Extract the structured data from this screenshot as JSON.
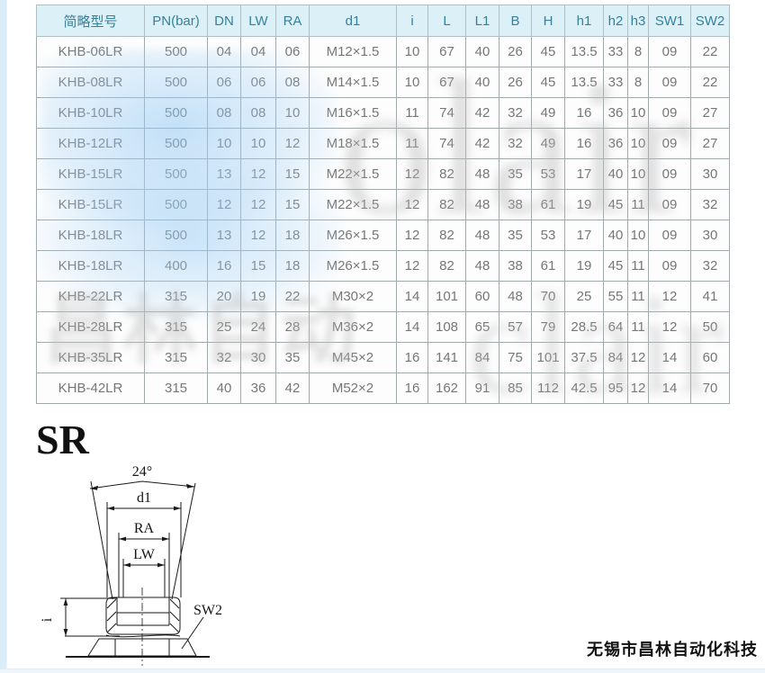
{
  "table": {
    "columns": [
      "简略型号",
      "PN(bar)",
      "DN",
      "LW",
      "RA",
      "d1",
      "i",
      "L",
      "L1",
      "B",
      "H",
      "h1",
      "h2",
      "h3",
      "SW1",
      "SW2"
    ],
    "rows": [
      [
        "KHB-06LR",
        "500",
        "04",
        "04",
        "06",
        "M12×1.5",
        "10",
        "67",
        "40",
        "26",
        "45",
        "13.5",
        "33",
        "8",
        "09",
        "22"
      ],
      [
        "KHB-08LR",
        "500",
        "06",
        "06",
        "08",
        "M14×1.5",
        "10",
        "67",
        "40",
        "26",
        "45",
        "13.5",
        "33",
        "8",
        "09",
        "22"
      ],
      [
        "KHB-10LR",
        "500",
        "08",
        "08",
        "10",
        "M16×1.5",
        "11",
        "74",
        "42",
        "32",
        "49",
        "16",
        "36",
        "10",
        "09",
        "27"
      ],
      [
        "KHB-12LR",
        "500",
        "10",
        "10",
        "12",
        "M18×1.5",
        "11",
        "74",
        "42",
        "32",
        "49",
        "16",
        "36",
        "10",
        "09",
        "27"
      ],
      [
        "KHB-15LR",
        "500",
        "13",
        "12",
        "15",
        "M22×1.5",
        "12",
        "82",
        "48",
        "35",
        "53",
        "17",
        "40",
        "10",
        "09",
        "30"
      ],
      [
        "KHB-15LR",
        "500",
        "12",
        "12",
        "15",
        "M22×1.5",
        "12",
        "82",
        "48",
        "38",
        "61",
        "19",
        "45",
        "11",
        "09",
        "32"
      ],
      [
        "KHB-18LR",
        "500",
        "13",
        "12",
        "18",
        "M26×1.5",
        "12",
        "82",
        "48",
        "35",
        "53",
        "17",
        "40",
        "10",
        "09",
        "30"
      ],
      [
        "KHB-18LR",
        "400",
        "16",
        "15",
        "18",
        "M26×1.5",
        "12",
        "82",
        "48",
        "38",
        "61",
        "19",
        "45",
        "11",
        "09",
        "32"
      ],
      [
        "KHB-22LR",
        "315",
        "20",
        "19",
        "22",
        "M30×2",
        "14",
        "101",
        "60",
        "48",
        "70",
        "25",
        "55",
        "11",
        "12",
        "41"
      ],
      [
        "KHB-28LR",
        "315",
        "25",
        "24",
        "28",
        "M36×2",
        "14",
        "108",
        "65",
        "57",
        "79",
        "28.5",
        "64",
        "11",
        "12",
        "50"
      ],
      [
        "KHB-35LR",
        "315",
        "32",
        "30",
        "35",
        "M45×2",
        "16",
        "141",
        "84",
        "75",
        "101",
        "37.5",
        "84",
        "12",
        "14",
        "60"
      ],
      [
        "KHB-42LR",
        "315",
        "40",
        "36",
        "42",
        "M52×2",
        "16",
        "162",
        "91",
        "85",
        "112",
        "42.5",
        "95",
        "12",
        "14",
        "70"
      ]
    ]
  },
  "diagram": {
    "title": "SR",
    "labels": {
      "angle": "24°",
      "d1": "d1",
      "ra": "RA",
      "lw": "LW",
      "sw2": "SW2",
      "i": "i"
    }
  },
  "footer": {
    "company": "无锡市昌林自动化科技"
  },
  "watermark": {
    "left_text": "昌林自动",
    "right_text_top": "olair",
    "right_text_bottom": "clair"
  },
  "colors": {
    "header_bg": "#dcf0f8",
    "header_text": "#36809a",
    "cell_text": "#767676",
    "border": "#a2a9ab",
    "strip": "#d9ecf7"
  }
}
